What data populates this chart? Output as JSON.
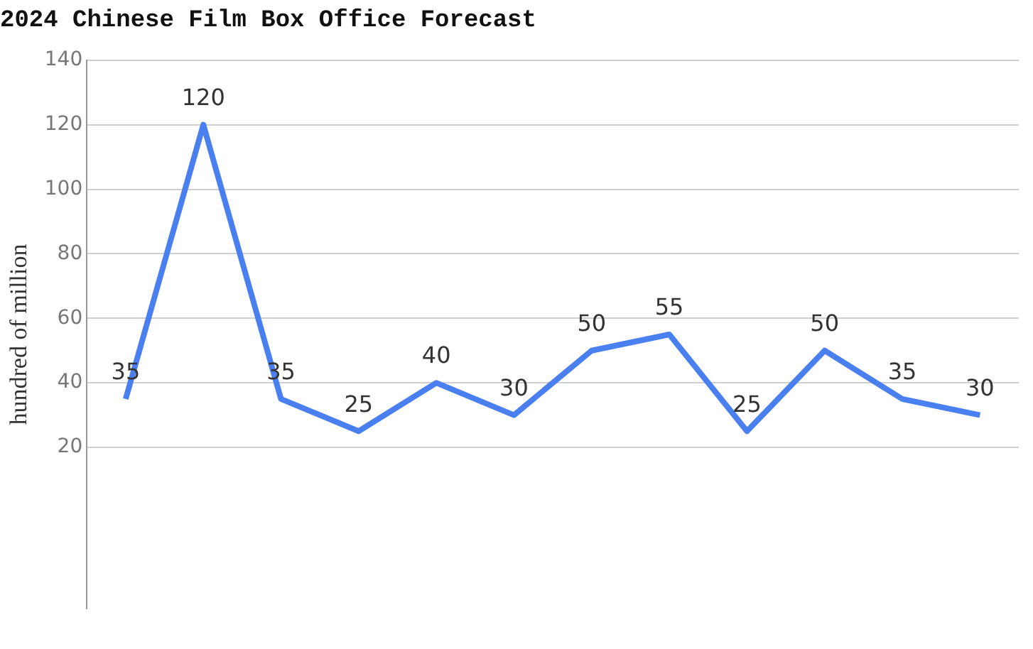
{
  "chart_data": {
    "type": "line",
    "title": "2024 Chinese Film Box Office Forecast",
    "ylabel": "hundred of million",
    "categories": [
      null,
      null,
      null,
      null,
      null,
      null,
      null,
      null,
      null,
      null,
      null,
      null
    ],
    "series": [
      {
        "color": "#4a7ff0",
        "values": [
          35,
          120,
          35,
          25,
          40,
          30,
          50,
          55,
          25,
          50,
          35,
          30
        ]
      }
    ],
    "ylim": [
      -30,
      140
    ],
    "yticks": [
      20,
      40,
      60,
      80,
      100,
      120,
      140
    ],
    "grid": "y",
    "data_labels": true,
    "legend": false,
    "marker": "none",
    "line_style": "solid"
  }
}
